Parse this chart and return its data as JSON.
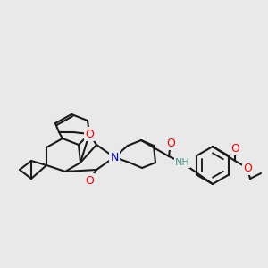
{
  "bg_color": "#e9e9e9",
  "bond_color": "#1a1a1a",
  "bond_width": 1.5,
  "atom_colors": {
    "O": "#ff0000",
    "N": "#0000cc",
    "H": "#4a9a8a",
    "C": "#1a1a1a"
  },
  "font_size_atom": 9,
  "font_size_small": 7
}
